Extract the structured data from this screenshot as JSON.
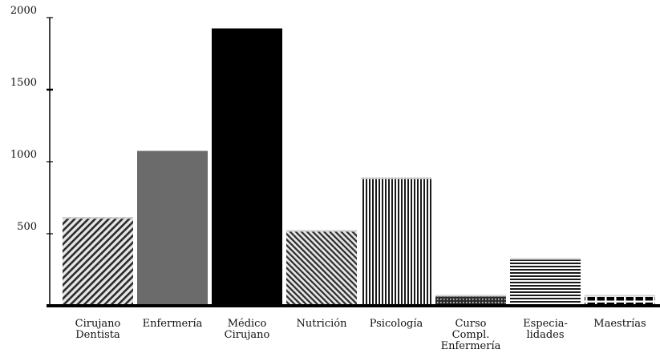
{
  "chart_data": {
    "type": "bar",
    "title": "",
    "xlabel": "",
    "ylabel": "",
    "ylim": [
      0,
      2000
    ],
    "y_ticks": [
      "500",
      "1000",
      "1500",
      "2000"
    ],
    "y_tick_values": [
      500,
      1000,
      1500,
      2000
    ],
    "grid": false,
    "categories": [
      [
        "Cirujano",
        "Dentista"
      ],
      [
        "Enfermería"
      ],
      [
        "Médico",
        "Cirujano"
      ],
      [
        "Nutrición"
      ],
      [
        "Psicología"
      ],
      [
        "Curso",
        "Compl.",
        "Enfermería"
      ],
      [
        "Especia-",
        "lidades"
      ],
      [
        "Maestrías"
      ]
    ],
    "values": [
      615,
      1075,
      1925,
      525,
      890,
      75,
      330,
      75
    ],
    "fills": [
      "diag-right",
      "#6b6b6b",
      "#000000",
      "diag-left",
      "vertical-stripes",
      "dots",
      "horizontal-stripes",
      "blocks"
    ]
  }
}
